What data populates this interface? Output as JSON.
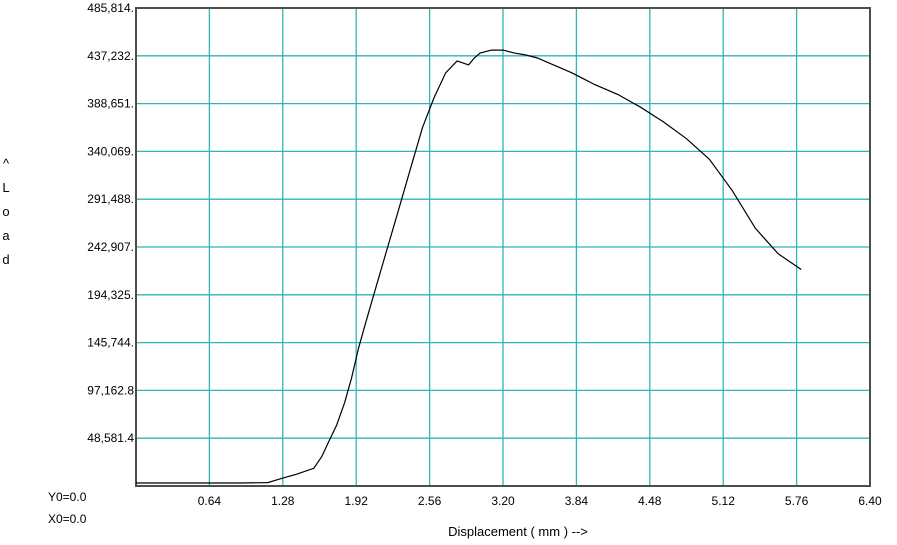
{
  "chart_data": {
    "type": "line",
    "ylabel": "Load",
    "ylabel_arrow": "^",
    "xlabel": "Displacement ( mm ) -->",
    "x_ticks": [
      "0.64",
      "1.28",
      "1.92",
      "2.56",
      "3.20",
      "3.84",
      "4.48",
      "5.12",
      "5.76",
      "6.40"
    ],
    "y_ticks": [
      "48,581.4",
      "97,162.8",
      "145,744.",
      "194,325.",
      "242,907.",
      "291,488.",
      "340,069.",
      "388,651.",
      "437,232.",
      "485,814."
    ],
    "origin_labels": [
      "Y0=0.0",
      "X0=0.0"
    ],
    "xlim": [
      0,
      6.4
    ],
    "ylim": [
      0,
      485814
    ],
    "grid": true,
    "colors": {
      "grid": "#2fb5b5",
      "line": "#000000",
      "frame": "#4d4d4d"
    },
    "series": [
      {
        "x": [
          0.0,
          0.3,
          0.6,
          0.9,
          1.15,
          1.25,
          1.4,
          1.55,
          1.62,
          1.68,
          1.75,
          1.82,
          1.88,
          1.94,
          2.0,
          2.1,
          2.2,
          2.3,
          2.4,
          2.5,
          2.6,
          2.7,
          2.8,
          2.9,
          2.95,
          3.0,
          3.1,
          3.2,
          3.3,
          3.4,
          3.5,
          3.6,
          3.7,
          3.8,
          3.9,
          4.0,
          4.2,
          4.4,
          4.6,
          4.8,
          5.0,
          5.2,
          5.4,
          5.6,
          5.8
        ],
        "y": [
          3000,
          3000,
          3000,
          3000,
          3500,
          7000,
          12000,
          18000,
          30000,
          45000,
          62000,
          85000,
          110000,
          140000,
          165000,
          205000,
          245000,
          285000,
          325000,
          365000,
          395000,
          420000,
          432000,
          428000,
          435000,
          440000,
          443000,
          443000,
          440000,
          438000,
          435000,
          430000,
          425000,
          420000,
          414000,
          408000,
          398000,
          385000,
          370000,
          353000,
          332000,
          300000,
          262000,
          236000,
          220000
        ]
      }
    ]
  }
}
